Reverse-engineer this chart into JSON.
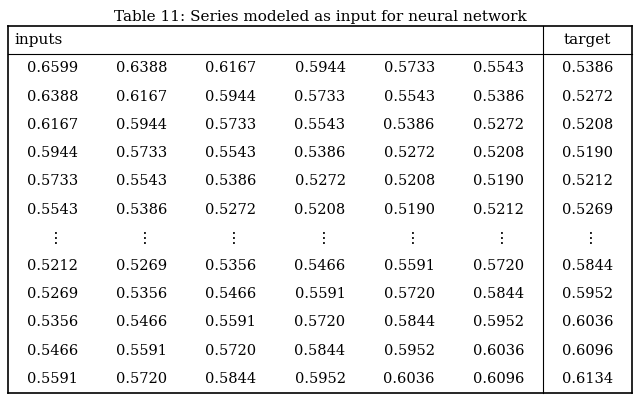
{
  "title": "Table 11: Series modeled as input for neural network",
  "rows": [
    [
      "0.6599",
      "0.6388",
      "0.6167",
      "0.5944",
      "0.5733",
      "0.5543",
      "0.5386"
    ],
    [
      "0.6388",
      "0.6167",
      "0.5944",
      "0.5733",
      "0.5543",
      "0.5386",
      "0.5272"
    ],
    [
      "0.6167",
      "0.5944",
      "0.5733",
      "0.5543",
      "0.5386",
      "0.5272",
      "0.5208"
    ],
    [
      "0.5944",
      "0.5733",
      "0.5543",
      "0.5386",
      "0.5272",
      "0.5208",
      "0.5190"
    ],
    [
      "0.5733",
      "0.5543",
      "0.5386",
      "0.5272",
      "0.5208",
      "0.5190",
      "0.5212"
    ],
    [
      "0.5543",
      "0.5386",
      "0.5272",
      "0.5208",
      "0.5190",
      "0.5212",
      "0.5269"
    ],
    [
      "\\vdots",
      "\\vdots",
      "\\vdots",
      "\\vdots",
      "\\vdots",
      "\\vdots",
      "\\vdots"
    ],
    [
      "0.5212",
      "0.5269",
      "0.5356",
      "0.5466",
      "0.5591",
      "0.5720",
      "0.5844"
    ],
    [
      "0.5269",
      "0.5356",
      "0.5466",
      "0.5591",
      "0.5720",
      "0.5844",
      "0.5952"
    ],
    [
      "0.5356",
      "0.5466",
      "0.5591",
      "0.5720",
      "0.5844",
      "0.5952",
      "0.6036"
    ],
    [
      "0.5466",
      "0.5591",
      "0.5720",
      "0.5844",
      "0.5952",
      "0.6036",
      "0.6096"
    ],
    [
      "0.5591",
      "0.5720",
      "0.5844",
      "0.5952",
      "0.6036",
      "0.6096",
      "0.6134"
    ]
  ],
  "bg_color": "#ffffff",
  "text_color": "#000000",
  "font_size": 10.5,
  "title_font_size": 11.0
}
